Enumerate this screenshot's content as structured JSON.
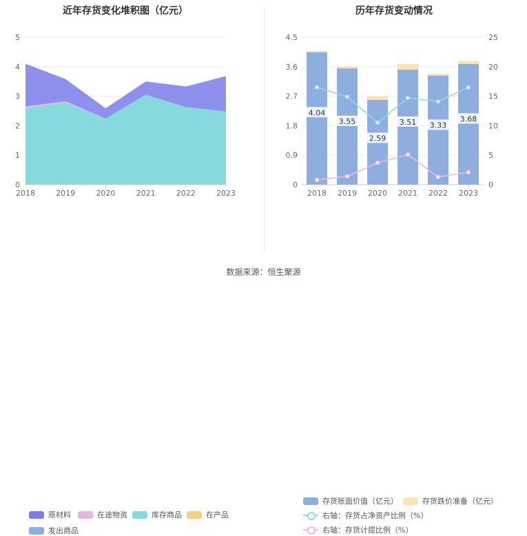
{
  "source": "数据来源：恒生聚源",
  "colors": {
    "raw": "#7b7bea",
    "transit": "#e4b5e2",
    "stock": "#86d9dc",
    "wip": "#f9d089",
    "shipped": "#8eaedf",
    "book": "#8eaedf",
    "reserve": "#fde3b4",
    "ratio_line": "#8fdbe0",
    "provision_line": "#f0b8e0"
  },
  "chart_data": [
    {
      "type": "area",
      "title": "近年存货变化堆积图（亿元）",
      "x": [
        "2018",
        "2019",
        "2020",
        "2021",
        "2022",
        "2023"
      ],
      "yticks": [
        "0",
        "1",
        "2",
        "3",
        "4",
        "5"
      ],
      "ylim": [
        0,
        5
      ],
      "series": [
        {
          "name": "原材料",
          "values": [
            1.45,
            0.75,
            0.35,
            0.45,
            0.7,
            1.2
          ]
        },
        {
          "name": "在途物资",
          "values": [
            0.05,
            0.05,
            0.0,
            0.0,
            0.0,
            0.0
          ]
        },
        {
          "name": "库存商品",
          "values": [
            2.6,
            2.78,
            2.24,
            3.05,
            2.63,
            2.48
          ]
        },
        {
          "name": "在产品",
          "values": [
            0,
            0,
            0,
            0,
            0,
            0
          ]
        },
        {
          "name": "发出商品",
          "values": [
            0,
            0,
            0,
            0,
            0,
            0
          ]
        }
      ]
    },
    {
      "type": "bar",
      "title": "历年存货变动情况",
      "categories": [
        "2018",
        "2019",
        "2020",
        "2021",
        "2022",
        "2023"
      ],
      "yticks_left": [
        "0",
        "0.9",
        "1.8",
        "2.7",
        "3.6",
        "4.5"
      ],
      "yticks_right": [
        "0",
        "5",
        "10",
        "15",
        "20",
        "25"
      ],
      "ylim_left": [
        0,
        4.5
      ],
      "ylim_right": [
        0,
        25
      ],
      "bar_labels": [
        "4.04",
        "3.55",
        "2.59",
        "3.51",
        "3.33",
        "3.68"
      ],
      "series": [
        {
          "name": "存货账面价值（亿元）",
          "values": [
            4.04,
            3.55,
            2.59,
            3.51,
            3.33,
            3.68
          ]
        },
        {
          "name": "存货跌价准备（亿元）",
          "values": [
            0.04,
            0.06,
            0.11,
            0.17,
            0.05,
            0.09
          ]
        },
        {
          "name": "右轴：存货占净资产比例（%）",
          "values": [
            16.5,
            14.9,
            10.5,
            14.7,
            14.1,
            16.5
          ]
        },
        {
          "name": "右轴：存货计提比例（%）",
          "values": [
            0.8,
            1.4,
            3.7,
            5.1,
            1.3,
            2.1
          ]
        }
      ]
    }
  ]
}
